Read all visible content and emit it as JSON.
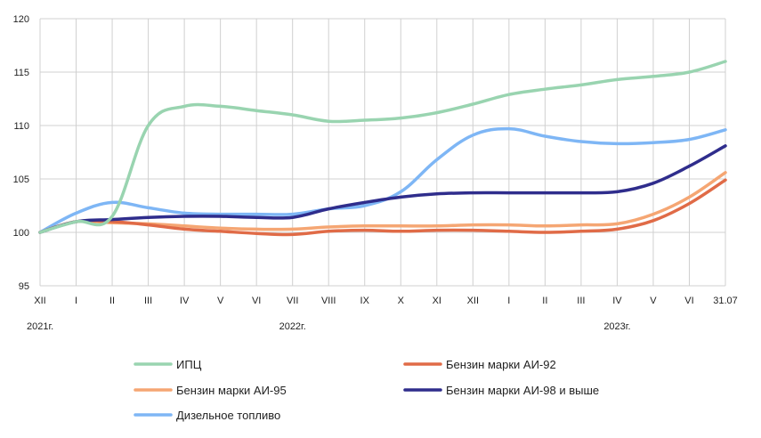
{
  "chart_data": {
    "type": "line",
    "title": "",
    "xlabel": "",
    "ylabel": "",
    "ylim": [
      95,
      120
    ],
    "yticks": [
      95,
      100,
      105,
      110,
      115,
      120
    ],
    "grid": true,
    "legend_position": "bottom",
    "categories": [
      "XII",
      "I",
      "II",
      "III",
      "IV",
      "V",
      "VI",
      "VII",
      "VIII",
      "IX",
      "X",
      "XI",
      "XII",
      "I",
      "II",
      "III",
      "IV",
      "V",
      "VI",
      "31.07"
    ],
    "year_labels": [
      {
        "text": "2021г.",
        "category_index": 0
      },
      {
        "text": "2022г.",
        "category_index": 7
      },
      {
        "text": "2023г.",
        "category_index": 16
      }
    ],
    "series": [
      {
        "name": "ИПЦ",
        "color": "#99d4b0",
        "values": [
          100,
          101.0,
          101.5,
          110.0,
          111.8,
          111.8,
          111.4,
          111.0,
          110.4,
          110.5,
          110.7,
          111.2,
          112.0,
          112.9,
          113.4,
          113.8,
          114.3,
          114.6,
          115.0,
          116.0
        ]
      },
      {
        "name": "Бензин марки АИ-92",
        "color": "#e06b47",
        "values": [
          100,
          101.0,
          101.0,
          100.7,
          100.3,
          100.1,
          99.9,
          99.8,
          100.1,
          100.2,
          100.1,
          100.2,
          100.2,
          100.1,
          100.0,
          100.1,
          100.3,
          101.1,
          102.7,
          104.9
        ]
      },
      {
        "name": "Бензин марки АИ-95",
        "color": "#f5a673",
        "values": [
          100,
          101.0,
          100.9,
          100.8,
          100.6,
          100.4,
          100.3,
          100.3,
          100.5,
          100.6,
          100.6,
          100.6,
          100.7,
          100.7,
          100.6,
          100.7,
          100.8,
          101.7,
          103.3,
          105.6
        ]
      },
      {
        "name": "Бензин марки АИ-98 и выше",
        "color": "#2f2d8c",
        "values": [
          100,
          101.0,
          101.2,
          101.4,
          101.5,
          101.5,
          101.4,
          101.4,
          102.2,
          102.8,
          103.3,
          103.6,
          103.7,
          103.7,
          103.7,
          103.7,
          103.8,
          104.6,
          106.2,
          108.1
        ]
      },
      {
        "name": "Дизельное топливо",
        "color": "#7eb6f5",
        "values": [
          100,
          101.8,
          102.8,
          102.3,
          101.8,
          101.7,
          101.7,
          101.7,
          102.2,
          102.5,
          103.8,
          106.8,
          109.1,
          109.7,
          109.0,
          108.5,
          108.3,
          108.4,
          108.7,
          109.6
        ]
      }
    ]
  }
}
